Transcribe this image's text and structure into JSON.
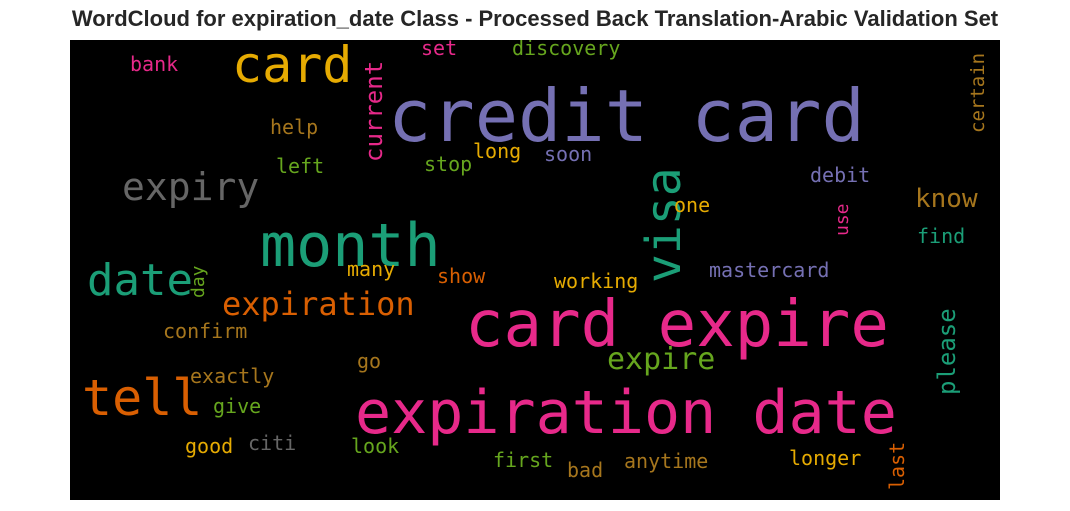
{
  "title": "WordCloud for expiration_date Class - Processed Back Translation-Arabic Validation Set",
  "words": [
    {
      "id": "credit-card",
      "text": "credit card",
      "color": "#7570b3"
    },
    {
      "id": "card-expire",
      "text": "card expire",
      "color": "#e7298a"
    },
    {
      "id": "expiration-date",
      "text": "expiration date",
      "color": "#e7298a"
    },
    {
      "id": "month",
      "text": "month",
      "color": "#1b9e77"
    },
    {
      "id": "card",
      "text": "card",
      "color": "#e6ab02"
    },
    {
      "id": "visa",
      "text": "visa",
      "color": "#1b9e77"
    },
    {
      "id": "tell",
      "text": "tell",
      "color": "#d95f02"
    },
    {
      "id": "date",
      "text": "date",
      "color": "#1b9e77"
    },
    {
      "id": "expiry",
      "text": "expiry",
      "color": "#666666"
    },
    {
      "id": "expiration",
      "text": "expiration",
      "color": "#d95f02"
    },
    {
      "id": "expire",
      "text": "expire",
      "color": "#66a61e"
    },
    {
      "id": "current",
      "text": "current",
      "color": "#e7298a"
    },
    {
      "id": "please",
      "text": "please",
      "color": "#1b9e77"
    },
    {
      "id": "know",
      "text": "know",
      "color": "#a6761d"
    },
    {
      "id": "discovery",
      "text": "discovery",
      "color": "#66a61e"
    },
    {
      "id": "set",
      "text": "set",
      "color": "#e7298a"
    },
    {
      "id": "bank",
      "text": "bank",
      "color": "#e7298a"
    },
    {
      "id": "help",
      "text": "help",
      "color": "#a6761d"
    },
    {
      "id": "left",
      "text": "left",
      "color": "#66a61e"
    },
    {
      "id": "stop",
      "text": "stop",
      "color": "#66a61e"
    },
    {
      "id": "long",
      "text": "long",
      "color": "#e6ab02"
    },
    {
      "id": "soon",
      "text": "soon",
      "color": "#7570b3"
    },
    {
      "id": "debit",
      "text": "debit",
      "color": "#7570b3"
    },
    {
      "id": "one",
      "text": "one",
      "color": "#e6ab02"
    },
    {
      "id": "use",
      "text": "use",
      "color": "#e7298a"
    },
    {
      "id": "find",
      "text": "find",
      "color": "#1b9e77"
    },
    {
      "id": "certain",
      "text": "certain",
      "color": "#a6761d"
    },
    {
      "id": "day",
      "text": "day",
      "color": "#66a61e"
    },
    {
      "id": "many",
      "text": "many",
      "color": "#e6ab02"
    },
    {
      "id": "show",
      "text": "show",
      "color": "#d95f02"
    },
    {
      "id": "working",
      "text": "working",
      "color": "#e6ab02"
    },
    {
      "id": "mastercard",
      "text": "mastercard",
      "color": "#7570b3"
    },
    {
      "id": "confirm",
      "text": "confirm",
      "color": "#a6761d"
    },
    {
      "id": "go",
      "text": "go",
      "color": "#a6761d"
    },
    {
      "id": "exactly",
      "text": "exactly",
      "color": "#a6761d"
    },
    {
      "id": "give",
      "text": "give",
      "color": "#66a61e"
    },
    {
      "id": "good",
      "text": "good",
      "color": "#e6ab02"
    },
    {
      "id": "citi",
      "text": "citi",
      "color": "#666666"
    },
    {
      "id": "look",
      "text": "look",
      "color": "#66a61e"
    },
    {
      "id": "first",
      "text": "first",
      "color": "#66a61e"
    },
    {
      "id": "bad",
      "text": "bad",
      "color": "#a6761d"
    },
    {
      "id": "anytime",
      "text": "anytime",
      "color": "#a6761d"
    },
    {
      "id": "longer",
      "text": "longer",
      "color": "#e6ab02"
    },
    {
      "id": "last",
      "text": "last",
      "color": "#d95f02"
    }
  ]
}
